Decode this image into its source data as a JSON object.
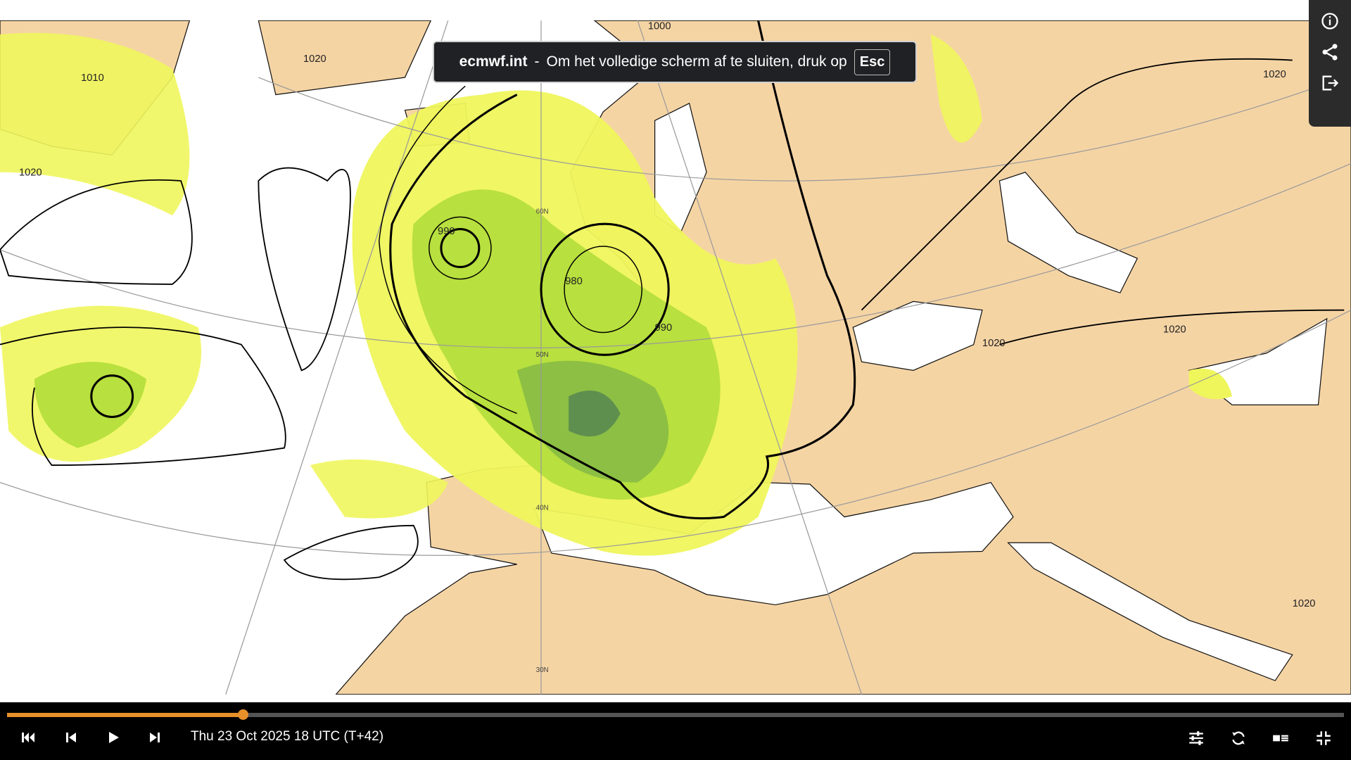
{
  "notification": {
    "domain": "ecmwf.int",
    "separator": "-",
    "message": "Om het volledige scherm af te sluiten, druk op",
    "key": "Esc"
  },
  "player": {
    "timestamp": "Thu 23 Oct 2025 18 UTC (T+42)"
  },
  "map": {
    "labels": [
      "1010",
      "1020",
      "1020",
      "1000",
      "990",
      "980",
      "990",
      "1020",
      "1020",
      "1020",
      "1020",
      "60N",
      "50N",
      "40N",
      "30N"
    ]
  }
}
